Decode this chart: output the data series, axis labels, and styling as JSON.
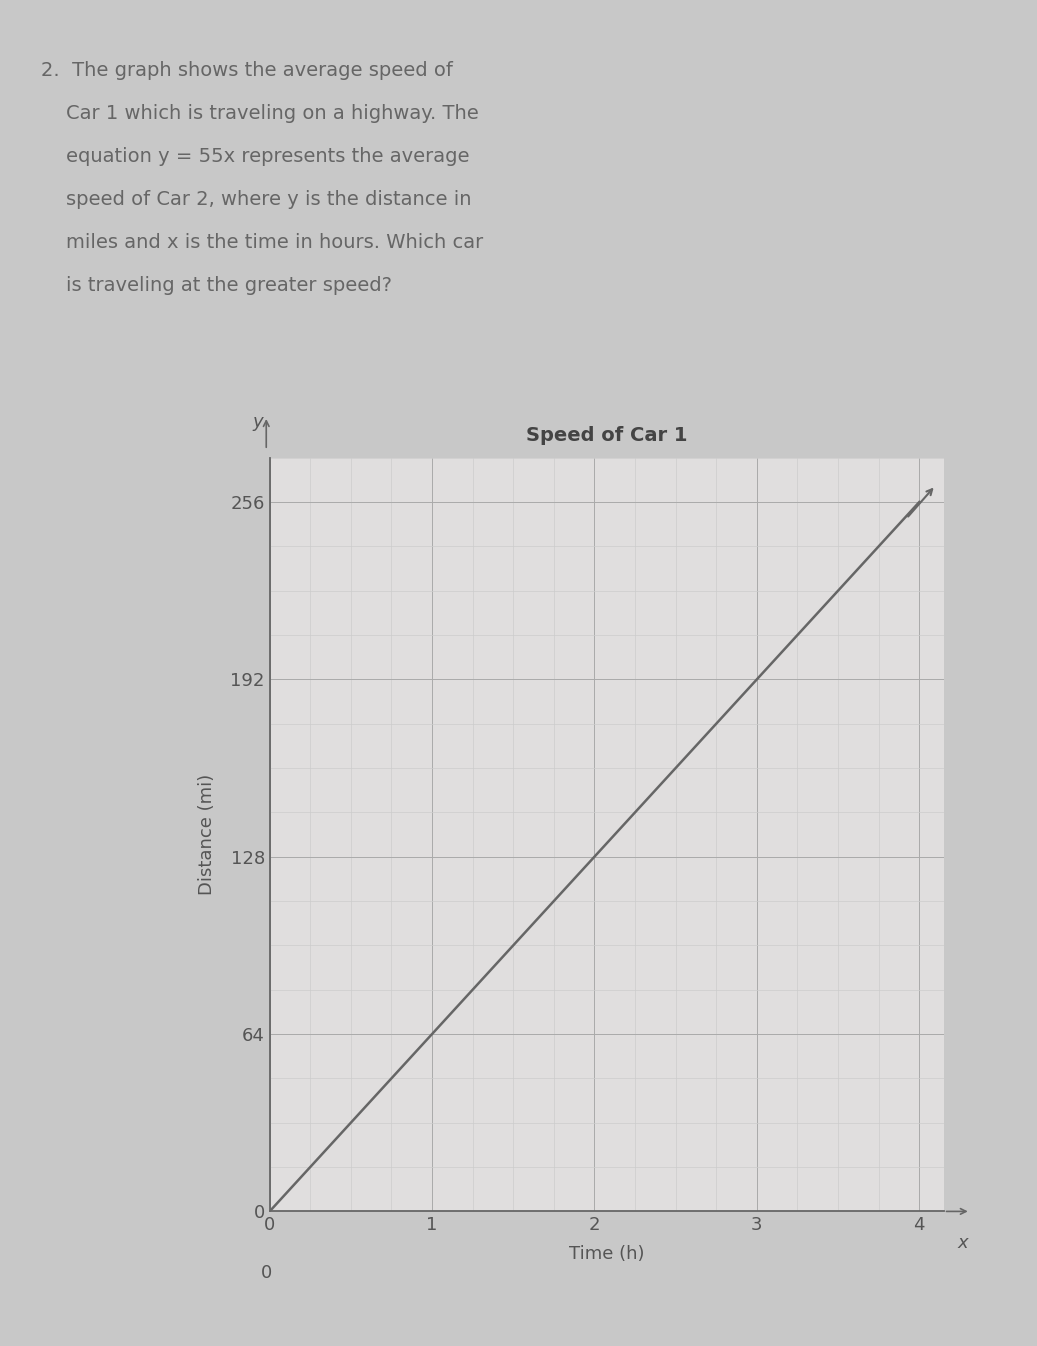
{
  "title": "Speed of Car 1",
  "xlabel": "Time (h)",
  "ylabel": "Distance (mi)",
  "x_ticks": [
    0,
    1,
    2,
    3,
    4
  ],
  "y_ticks": [
    0,
    64,
    128,
    192,
    256
  ],
  "xlim": [
    0,
    4.15
  ],
  "ylim": [
    0,
    272
  ],
  "line_x": [
    0,
    4
  ],
  "line_y": [
    0,
    256
  ],
  "line_color": "#666666",
  "line_width": 1.8,
  "major_grid_color": "#aaaaaa",
  "minor_grid_color": "#cccccc",
  "background_color": "#c8c8c8",
  "plot_bg_color": "#e0dede",
  "question_text_lines": [
    "2.  The graph shows the average speed of",
    "    Car 1 which is traveling on a highway. The",
    "    equation y = 55x represents the average",
    "    speed of Car 2, where y is the distance in",
    "    miles and x is the time in hours. Which car",
    "    is traveling at the greater speed?"
  ],
  "question_color": "#666666",
  "question_fontsize": 14,
  "title_fontsize": 14,
  "axis_label_fontsize": 13,
  "tick_fontsize": 13,
  "axis_label_color": "#555555",
  "tick_color": "#555555",
  "title_color": "#444444",
  "minor_ticks_x": 4,
  "minor_ticks_y": 4
}
